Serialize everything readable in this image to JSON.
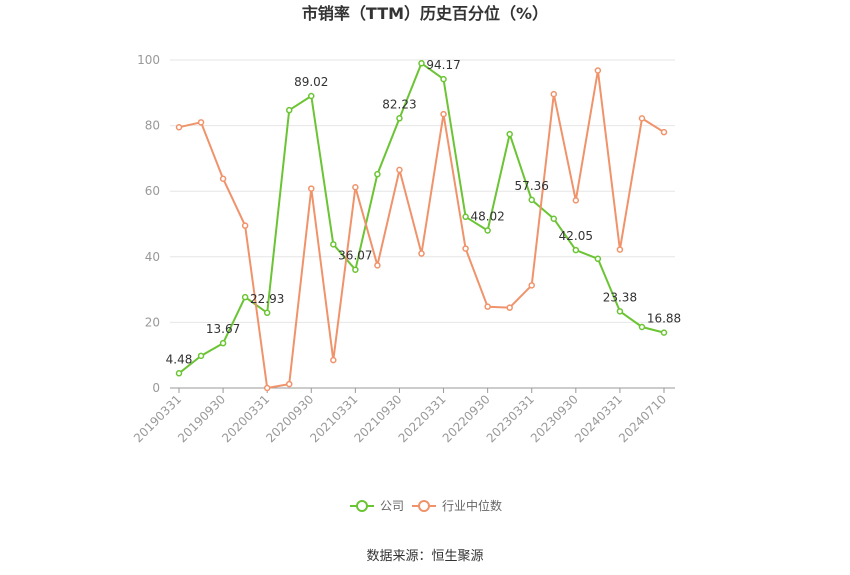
{
  "chart_data": {
    "type": "line",
    "title": "市销率（TTM）历史百分位（%）",
    "xlabel": "",
    "ylabel": "",
    "ylim": [
      0,
      100
    ],
    "yticks": [
      0,
      20,
      40,
      60,
      80,
      100
    ],
    "grid": true,
    "legend_position": "bottom",
    "x": [
      "20190331",
      "20190630",
      "20190930",
      "20191231",
      "20200331",
      "20200630",
      "20200930",
      "20201231",
      "20210331",
      "20210630",
      "20210930",
      "20211231",
      "20220331",
      "20220630",
      "20220930",
      "20221231",
      "20230331",
      "20230630",
      "20230930",
      "20231231",
      "20240331",
      "20240630",
      "20240710"
    ],
    "x_tick_labels": [
      "20190331",
      "20190930",
      "20200331",
      "20200930",
      "20210331",
      "20210930",
      "20220331",
      "20220930",
      "20230331",
      "20230930",
      "20240331",
      "20240710"
    ],
    "series": [
      {
        "name": "公司",
        "color": "#6bc434",
        "values": [
          4.48,
          9.8,
          13.67,
          27.7,
          22.93,
          84.7,
          89.02,
          43.8,
          36.07,
          65.2,
          82.23,
          99.0,
          94.17,
          52.2,
          48.02,
          77.4,
          57.36,
          51.6,
          42.05,
          39.4,
          23.38,
          18.6,
          16.88
        ],
        "labels": {
          "0": "4.48",
          "2": "13.67",
          "4": "22.93",
          "6": "89.02",
          "8": "36.07",
          "10": "82.23",
          "12": "94.17",
          "14": "48.02",
          "16": "57.36",
          "18": "42.05",
          "20": "23.38",
          "22": "16.88"
        }
      },
      {
        "name": "行业中位数",
        "color": "#f0936b",
        "values": [
          79.5,
          81.0,
          63.8,
          49.5,
          0.0,
          1.2,
          60.8,
          8.5,
          61.2,
          37.4,
          66.5,
          41.0,
          83.5,
          42.5,
          24.8,
          24.5,
          31.3,
          89.6,
          57.2,
          96.8,
          42.2,
          82.2,
          78.0
        ]
      }
    ]
  },
  "source_text": "数据来源：恒生聚源"
}
